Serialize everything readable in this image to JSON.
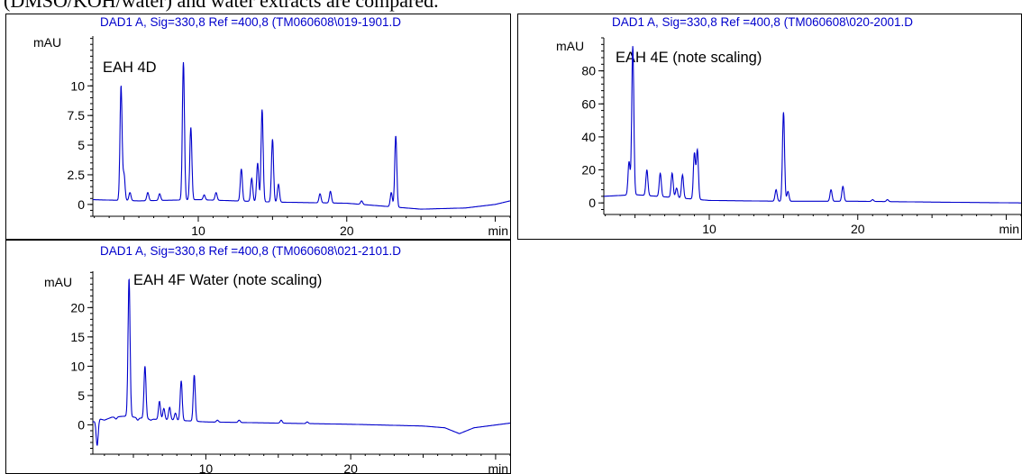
{
  "caption": "(DMSO/KOH/water) and water extracts are compared.",
  "chart_data": [
    {
      "type": "line",
      "header": "DAD1 A, Sig=330,8 Ref =400,8 (TM060608\\019-1901.D",
      "annotation": "EAH 4D",
      "ylabel": "mAU",
      "xunit": "min",
      "xlim": [
        2.9,
        31.0
      ],
      "ylim": [
        -1.0,
        14.2
      ],
      "yticks": [
        0,
        2.5,
        5,
        7.5,
        10
      ],
      "yticklabels": [
        "0",
        "2.5",
        "5",
        "7.5",
        "10"
      ],
      "xticks": [
        10,
        20
      ],
      "baseline": [
        [
          2.9,
          0.4
        ],
        [
          6,
          0.3
        ],
        [
          10,
          0.4
        ],
        [
          15,
          0.2
        ],
        [
          20,
          0.1
        ],
        [
          25,
          -0.4
        ],
        [
          28,
          -0.3
        ],
        [
          30,
          0
        ],
        [
          31,
          0.3
        ]
      ],
      "peaks": [
        [
          4.8,
          10
        ],
        [
          5.0,
          2.5
        ],
        [
          5.4,
          1.0
        ],
        [
          6.6,
          1.0
        ],
        [
          7.4,
          0.9
        ],
        [
          9.0,
          12.0
        ],
        [
          9.5,
          6.5
        ],
        [
          10.4,
          0.8
        ],
        [
          11.2,
          1.0
        ],
        [
          12.9,
          3.0
        ],
        [
          13.6,
          2.2
        ],
        [
          14.0,
          3.5
        ],
        [
          14.3,
          8.0
        ],
        [
          15.0,
          5.5
        ],
        [
          15.4,
          1.7
        ],
        [
          18.2,
          0.9
        ],
        [
          18.9,
          1.1
        ],
        [
          21.0,
          0.3
        ],
        [
          23.0,
          1.0
        ],
        [
          23.3,
          5.8
        ]
      ]
    },
    {
      "type": "line",
      "header": "DAD1 A, Sig=330,8 Ref =400,8 (TM060608\\020-2001.D",
      "annotation": "EAH 4E (note scaling)",
      "ylabel": "mAU",
      "xunit": "min",
      "xlim": [
        2.9,
        31.0
      ],
      "ylim": [
        -7,
        100
      ],
      "yticks": [
        0,
        20,
        40,
        60,
        80
      ],
      "yticklabels": [
        "0",
        "20",
        "40",
        "60",
        "80"
      ],
      "xticks": [
        10,
        20
      ],
      "baseline": [
        [
          2.9,
          4
        ],
        [
          5,
          5
        ],
        [
          8,
          3
        ],
        [
          10,
          1.5
        ],
        [
          15,
          1
        ],
        [
          20,
          1
        ],
        [
          25,
          0.5
        ],
        [
          31,
          0
        ]
      ],
      "peaks": [
        [
          4.6,
          25
        ],
        [
          4.85,
          95
        ],
        [
          5.8,
          20
        ],
        [
          6.7,
          18
        ],
        [
          7.5,
          18
        ],
        [
          7.8,
          9
        ],
        [
          8.2,
          17
        ],
        [
          9.0,
          30
        ],
        [
          9.2,
          32
        ],
        [
          14.5,
          8
        ],
        [
          15.0,
          55
        ],
        [
          15.3,
          7
        ],
        [
          18.2,
          8
        ],
        [
          19.0,
          10
        ],
        [
          21.0,
          2
        ],
        [
          22.0,
          2
        ]
      ]
    },
    {
      "type": "line",
      "header": "DAD1 A, Sig=330,8 Ref =400,8 (TM060608\\021-2101.D",
      "annotation": "EAH 4F Water (note scaling)",
      "ylabel": "mAU",
      "xunit": "min",
      "xlim": [
        2.2,
        31.0
      ],
      "ylim": [
        -5.0,
        26.2
      ],
      "yticks": [
        0,
        5,
        10,
        15,
        20
      ],
      "yticklabels": [
        "0",
        "5",
        "10",
        "15",
        "20"
      ],
      "xticks": [
        10,
        20
      ],
      "baseline": [
        [
          2.2,
          0.5
        ],
        [
          2.7,
          1.0
        ],
        [
          3.0,
          0.8
        ],
        [
          3.5,
          1.3
        ],
        [
          4.5,
          1.5
        ],
        [
          6,
          1.0
        ],
        [
          8,
          0.8
        ],
        [
          10,
          0.5
        ],
        [
          15,
          0.3
        ],
        [
          20,
          0.1
        ],
        [
          25,
          -0.2
        ],
        [
          26.5,
          -0.5
        ],
        [
          27.5,
          -1.5
        ],
        [
          28.5,
          -0.5
        ],
        [
          31,
          0.3
        ]
      ],
      "peaks": [
        [
          2.5,
          -3.5
        ],
        [
          3.8,
          1.0
        ],
        [
          4.5,
          1.5
        ],
        [
          4.7,
          25
        ],
        [
          5.3,
          0.8
        ],
        [
          5.8,
          10
        ],
        [
          6.2,
          0.8
        ],
        [
          6.8,
          4.0
        ],
        [
          7.1,
          2.8
        ],
        [
          7.5,
          3.0
        ],
        [
          7.9,
          2.0
        ],
        [
          8.3,
          7.5
        ],
        [
          9.2,
          8.5
        ],
        [
          10.8,
          0.8
        ],
        [
          12.3,
          0.8
        ],
        [
          15.2,
          0.8
        ],
        [
          17.0,
          0.5
        ]
      ]
    }
  ]
}
